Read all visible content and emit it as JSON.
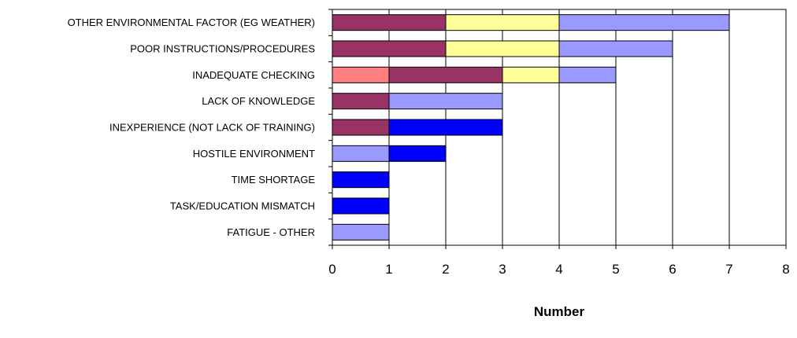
{
  "chart_data": {
    "type": "bar",
    "orientation": "horizontal",
    "stacked": true,
    "categories": [
      "OTHER ENVIRONMENTAL FACTOR (EG WEATHER)",
      "POOR INSTRUCTIONS/PROCEDURES",
      "INADEQUATE CHECKING",
      "LACK OF KNOWLEDGE",
      "INEXPERIENCE (NOT LACK OF TRAINING)",
      "HOSTILE ENVIRONMENT",
      "TIME SHORTAGE",
      "TASK/EDUCATION MISMATCH",
      "FATIGUE - OTHER"
    ],
    "segments": [
      [
        {
          "value": 2,
          "color": "#993366"
        },
        {
          "value": 2,
          "color": "#ffff99"
        },
        {
          "value": 3,
          "color": "#9999ff"
        }
      ],
      [
        {
          "value": 2,
          "color": "#993366"
        },
        {
          "value": 2,
          "color": "#ffff99"
        },
        {
          "value": 2,
          "color": "#9999ff"
        }
      ],
      [
        {
          "value": 1,
          "color": "#ff8080"
        },
        {
          "value": 2,
          "color": "#993366"
        },
        {
          "value": 1,
          "color": "#ffff99"
        },
        {
          "value": 1,
          "color": "#9999ff"
        }
      ],
      [
        {
          "value": 1,
          "color": "#993366"
        },
        {
          "value": 2,
          "color": "#9999ff"
        }
      ],
      [
        {
          "value": 1,
          "color": "#993366"
        },
        {
          "value": 2,
          "color": "#0000ff"
        }
      ],
      [
        {
          "value": 1,
          "color": "#9999ff"
        },
        {
          "value": 1,
          "color": "#0000ff"
        }
      ],
      [
        {
          "value": 1,
          "color": "#0000ff"
        }
      ],
      [
        {
          "value": 1,
          "color": "#0000ff"
        }
      ],
      [
        {
          "value": 1,
          "color": "#9999ff"
        }
      ]
    ],
    "xlim": [
      0,
      8
    ],
    "xticks": [
      0,
      1,
      2,
      3,
      4,
      5,
      6,
      7,
      8
    ],
    "xlabel": "Number",
    "ylabel": "",
    "title": "",
    "grid": "vertical",
    "legend": "none"
  }
}
